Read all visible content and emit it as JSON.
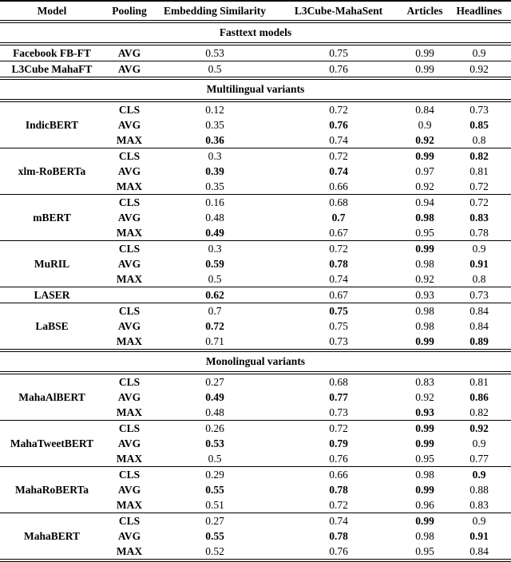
{
  "table": {
    "columns": [
      "Model",
      "Pooling",
      "Embedding Similarity",
      "L3Cube-MahaSent",
      "Articles",
      "Headlines"
    ],
    "sections": [
      {
        "title": "Fasttext models",
        "groups": [
          {
            "model": "Facebook FB-FT",
            "rows": [
              {
                "pooling": "AVG",
                "values": [
                  "0.53",
                  "0.75",
                  "0.99",
                  "0.9"
                ],
                "bold": [
                  false,
                  false,
                  false,
                  false
                ]
              }
            ]
          },
          {
            "model": "L3Cube MahaFT",
            "rows": [
              {
                "pooling": "AVG",
                "values": [
                  "0.5",
                  "0.76",
                  "0.99",
                  "0.92"
                ],
                "bold": [
                  false,
                  false,
                  false,
                  false
                ]
              }
            ]
          }
        ]
      },
      {
        "title": "Multilingual variants",
        "groups": [
          {
            "model": "IndicBERT",
            "rows": [
              {
                "pooling": "CLS",
                "values": [
                  "0.12",
                  "0.72",
                  "0.84",
                  "0.73"
                ],
                "bold": [
                  false,
                  false,
                  false,
                  false
                ]
              },
              {
                "pooling": "AVG",
                "values": [
                  "0.35",
                  "0.76",
                  "0.9",
                  "0.85"
                ],
                "bold": [
                  false,
                  true,
                  false,
                  true
                ]
              },
              {
                "pooling": "MAX",
                "values": [
                  "0.36",
                  "0.74",
                  "0.92",
                  "0.8"
                ],
                "bold": [
                  true,
                  false,
                  true,
                  false
                ]
              }
            ]
          },
          {
            "model": "xlm-RoBERTa",
            "rows": [
              {
                "pooling": "CLS",
                "values": [
                  "0.3",
                  "0.72",
                  "0.99",
                  "0.82"
                ],
                "bold": [
                  false,
                  false,
                  true,
                  true
                ]
              },
              {
                "pooling": "AVG",
                "values": [
                  "0.39",
                  "0.74",
                  "0.97",
                  "0.81"
                ],
                "bold": [
                  true,
                  true,
                  false,
                  false
                ]
              },
              {
                "pooling": "MAX",
                "values": [
                  "0.35",
                  "0.66",
                  "0.92",
                  "0.72"
                ],
                "bold": [
                  false,
                  false,
                  false,
                  false
                ]
              }
            ]
          },
          {
            "model": "mBERT",
            "rows": [
              {
                "pooling": "CLS",
                "values": [
                  "0.16",
                  "0.68",
                  "0.94",
                  "0.72"
                ],
                "bold": [
                  false,
                  false,
                  false,
                  false
                ]
              },
              {
                "pooling": "AVG",
                "values": [
                  "0.48",
                  "0.7",
                  "0.98",
                  "0.83"
                ],
                "bold": [
                  false,
                  true,
                  true,
                  true
                ]
              },
              {
                "pooling": "MAX",
                "values": [
                  "0.49",
                  "0.67",
                  "0.95",
                  "0.78"
                ],
                "bold": [
                  true,
                  false,
                  false,
                  false
                ]
              }
            ]
          },
          {
            "model": "MuRIL",
            "rows": [
              {
                "pooling": "CLS",
                "values": [
                  "0.3",
                  "0.72",
                  "0.99",
                  "0.9"
                ],
                "bold": [
                  false,
                  false,
                  true,
                  false
                ]
              },
              {
                "pooling": "AVG",
                "values": [
                  "0.59",
                  "0.78",
                  "0.98",
                  "0.91"
                ],
                "bold": [
                  true,
                  true,
                  false,
                  true
                ]
              },
              {
                "pooling": "MAX",
                "values": [
                  "0.5",
                  "0.74",
                  "0.92",
                  "0.8"
                ],
                "bold": [
                  false,
                  false,
                  false,
                  false
                ]
              }
            ]
          },
          {
            "model": "LASER",
            "rows": [
              {
                "pooling": "",
                "values": [
                  "0.62",
                  "0.67",
                  "0.93",
                  "0.73"
                ],
                "bold": [
                  true,
                  false,
                  false,
                  false
                ]
              }
            ]
          },
          {
            "model": "LaBSE",
            "rows": [
              {
                "pooling": "CLS",
                "values": [
                  "0.7",
                  "0.75",
                  "0.98",
                  "0.84"
                ],
                "bold": [
                  false,
                  true,
                  false,
                  false
                ]
              },
              {
                "pooling": "AVG",
                "values": [
                  "0.72",
                  "0.75",
                  "0.98",
                  "0.84"
                ],
                "bold": [
                  true,
                  false,
                  false,
                  false
                ]
              },
              {
                "pooling": "MAX",
                "values": [
                  "0.71",
                  "0.73",
                  "0.99",
                  "0.89"
                ],
                "bold": [
                  false,
                  false,
                  true,
                  true
                ]
              }
            ]
          }
        ]
      },
      {
        "title": "Monolingual variants",
        "groups": [
          {
            "model": "MahaAlBERT",
            "rows": [
              {
                "pooling": "CLS",
                "values": [
                  "0.27",
                  "0.68",
                  "0.83",
                  "0.81"
                ],
                "bold": [
                  false,
                  false,
                  false,
                  false
                ]
              },
              {
                "pooling": "AVG",
                "values": [
                  "0.49",
                  "0.77",
                  "0.92",
                  "0.86"
                ],
                "bold": [
                  true,
                  true,
                  false,
                  true
                ]
              },
              {
                "pooling": "MAX",
                "values": [
                  "0.48",
                  "0.73",
                  "0.93",
                  "0.82"
                ],
                "bold": [
                  false,
                  false,
                  true,
                  false
                ]
              }
            ]
          },
          {
            "model": "MahaTweetBERT",
            "rows": [
              {
                "pooling": "CLS",
                "values": [
                  "0.26",
                  "0.72",
                  "0.99",
                  "0.92"
                ],
                "bold": [
                  false,
                  false,
                  true,
                  true
                ]
              },
              {
                "pooling": "AVG",
                "values": [
                  "0.53",
                  "0.79",
                  "0.99",
                  "0.9"
                ],
                "bold": [
                  true,
                  true,
                  true,
                  false
                ]
              },
              {
                "pooling": "MAX",
                "values": [
                  "0.5",
                  "0.76",
                  "0.95",
                  "0.77"
                ],
                "bold": [
                  false,
                  false,
                  false,
                  false
                ]
              }
            ]
          },
          {
            "model": "MahaRoBERTa",
            "rows": [
              {
                "pooling": "CLS",
                "values": [
                  "0.29",
                  "0.66",
                  "0.98",
                  "0.9"
                ],
                "bold": [
                  false,
                  false,
                  false,
                  true
                ]
              },
              {
                "pooling": "AVG",
                "values": [
                  "0.55",
                  "0.78",
                  "0.99",
                  "0.88"
                ],
                "bold": [
                  true,
                  true,
                  true,
                  false
                ]
              },
              {
                "pooling": "MAX",
                "values": [
                  "0.51",
                  "0.72",
                  "0.96",
                  "0.83"
                ],
                "bold": [
                  false,
                  false,
                  false,
                  false
                ]
              }
            ]
          },
          {
            "model": "MahaBERT",
            "rows": [
              {
                "pooling": "CLS",
                "values": [
                  "0.27",
                  "0.74",
                  "0.99",
                  "0.9"
                ],
                "bold": [
                  false,
                  false,
                  true,
                  false
                ]
              },
              {
                "pooling": "AVG",
                "values": [
                  "0.55",
                  "0.78",
                  "0.98",
                  "0.91"
                ],
                "bold": [
                  true,
                  true,
                  false,
                  true
                ]
              },
              {
                "pooling": "MAX",
                "values": [
                  "0.52",
                  "0.76",
                  "0.95",
                  "0.84"
                ],
                "bold": [
                  false,
                  false,
                  false,
                  false
                ]
              }
            ]
          }
        ]
      }
    ]
  }
}
